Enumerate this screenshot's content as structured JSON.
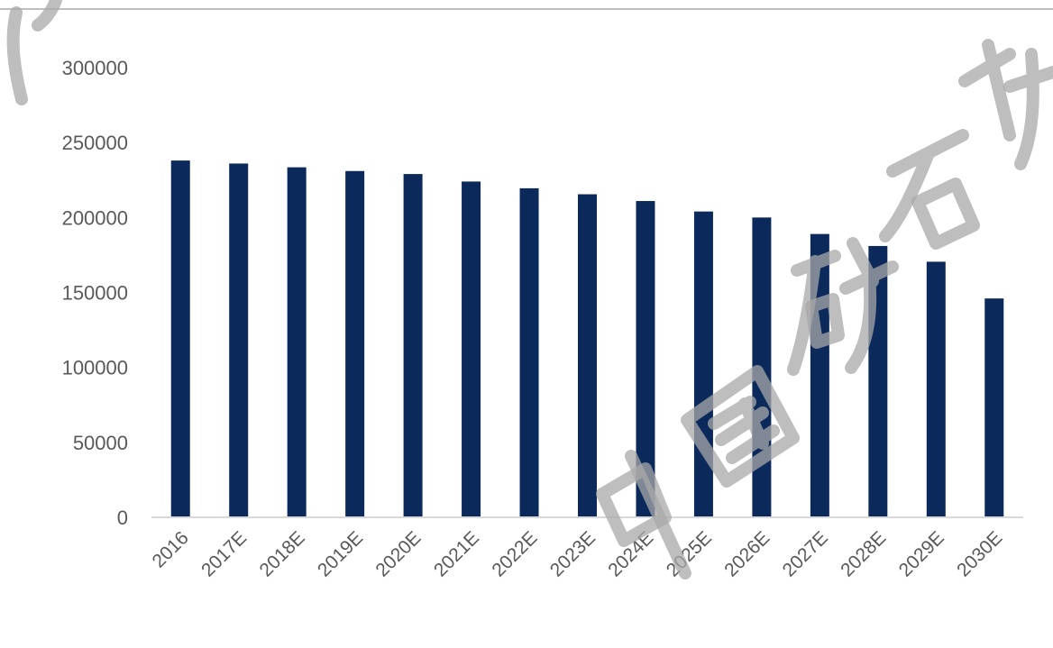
{
  "chart_data": {
    "type": "bar",
    "title": "",
    "xlabel": "",
    "ylabel": "",
    "categories": [
      "2016",
      "2017E",
      "2018E",
      "2019E",
      "2020E",
      "2021E",
      "2022E",
      "2023E",
      "2024E",
      "2025E",
      "2026E",
      "2027E",
      "2028E",
      "2029E",
      "2030E"
    ],
    "series": [
      {
        "values": [
          238000,
          236000,
          233500,
          231000,
          229000,
          224000,
          219500,
          215500,
          211000,
          204000,
          200000,
          189000,
          181000,
          170500,
          146000
        ],
        "color": "#0b2a5b"
      }
    ],
    "ylim": [
      0,
      300000
    ],
    "yticks": [
      0,
      50000,
      100000,
      150000,
      200000,
      250000,
      300000
    ],
    "ytick_labels": [
      "0",
      "50000",
      "100000",
      "150000",
      "200000",
      "250000",
      "300000"
    ],
    "grid": false,
    "legend": "none"
  },
  "watermark": {
    "text": "中国矿石协",
    "color": "#a8a8a8"
  }
}
